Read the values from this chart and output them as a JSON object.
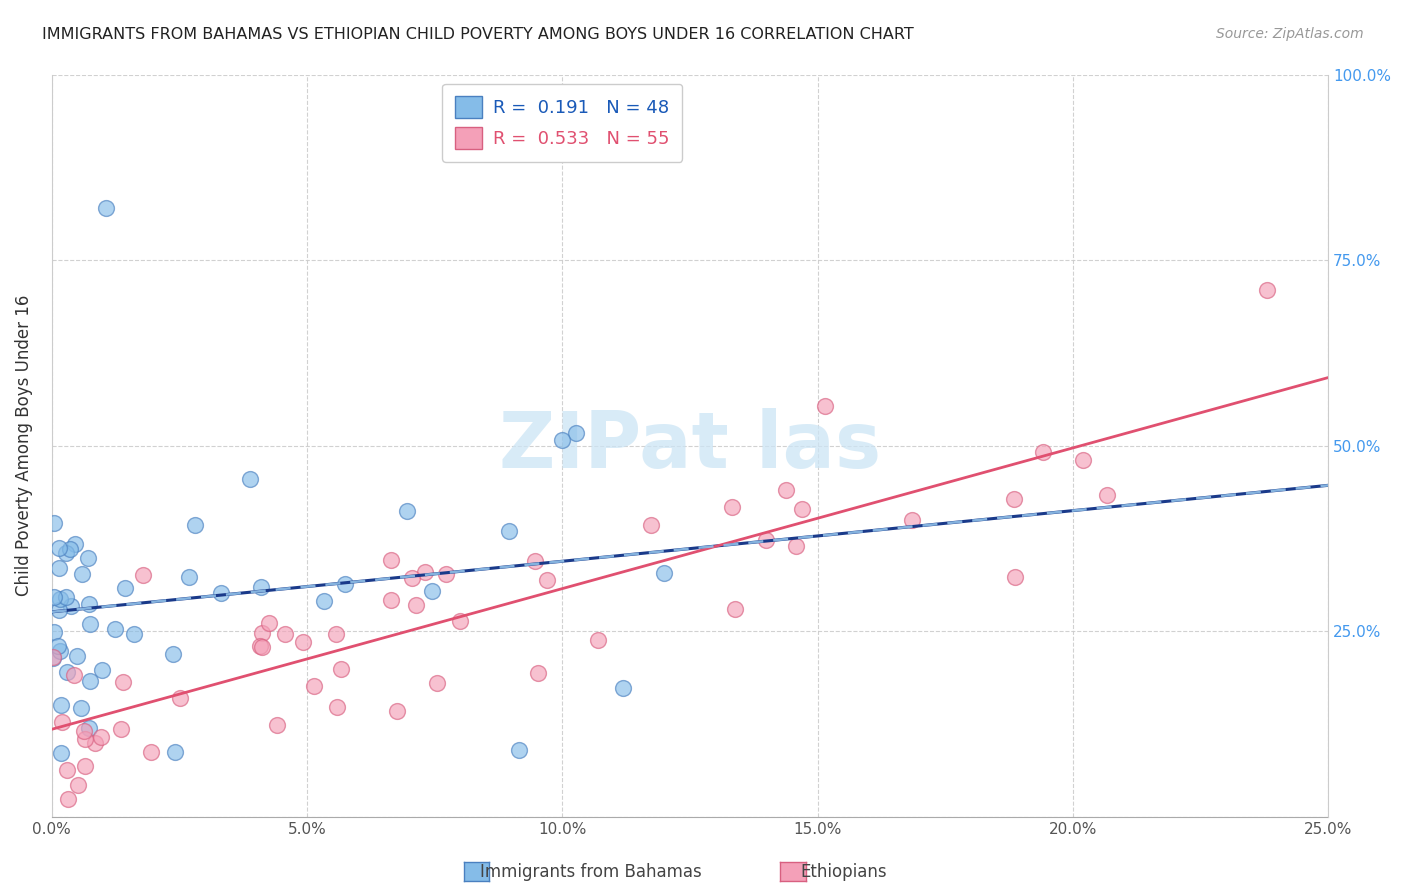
{
  "title": "IMMIGRANTS FROM BAHAMAS VS ETHIOPIAN CHILD POVERTY AMONG BOYS UNDER 16 CORRELATION CHART",
  "source": "Source: ZipAtlas.com",
  "ylabel": "Child Poverty Among Boys Under 16",
  "xlim": [
    0.0,
    0.25
  ],
  "ylim": [
    0.0,
    1.0
  ],
  "xticks": [
    0.0,
    0.05,
    0.1,
    0.15,
    0.2,
    0.25
  ],
  "yticks": [
    0.0,
    0.25,
    0.5,
    0.75,
    1.0
  ],
  "xticklabels": [
    "0.0%",
    "5.0%",
    "10.0%",
    "15.0%",
    "20.0%",
    "25.0%"
  ],
  "yticklabels_right": [
    "",
    "25.0%",
    "50.0%",
    "75.0%",
    "100.0%"
  ],
  "legend_label_b": "R =  0.191   N = 48",
  "legend_label_e": "R =  0.533   N = 55",
  "bahamas_color": "#85bce8",
  "ethiopian_color": "#f4a0b8",
  "bahamas_edge": "#4a80c0",
  "ethiopian_edge": "#d86080",
  "trend_bahamas_color": "#1a3a8a",
  "trend_ethiopian_color": "#e05070",
  "trend_dashed_color": "#90c0e8",
  "legend_text_b_color": "#1a5ab8",
  "legend_text_e_color": "#e05070",
  "R_bahamas": 0.191,
  "N_bahamas": 48,
  "R_ethiopian": 0.533,
  "N_ethiopian": 55,
  "seed": 42
}
